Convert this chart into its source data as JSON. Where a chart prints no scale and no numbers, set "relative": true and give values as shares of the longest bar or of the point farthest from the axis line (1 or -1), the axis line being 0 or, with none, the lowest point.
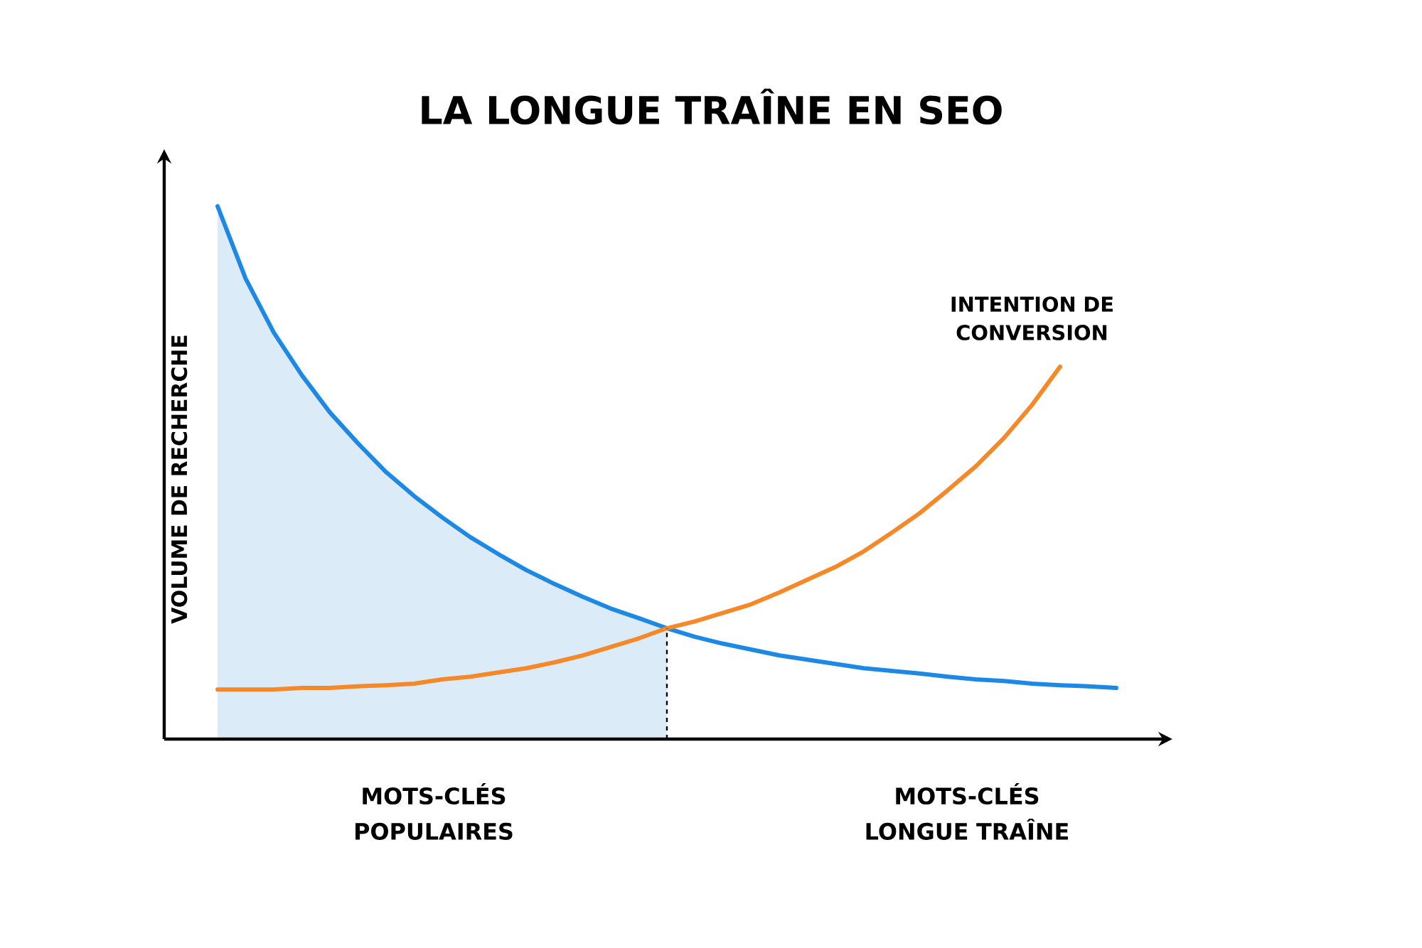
{
  "chart_data": {
    "type": "line",
    "title": "LA LONGUE TRAÎNE EN SEO",
    "ylabel": "VOLUME DE RECHERCHE",
    "relative": true,
    "categories": [
      null,
      null,
      null,
      null,
      null,
      null,
      null,
      null,
      null,
      null,
      null,
      null,
      null,
      null,
      null,
      null,
      null,
      null,
      null,
      null,
      null,
      null,
      null,
      null,
      null,
      null,
      null,
      null,
      null,
      null,
      null,
      null,
      null
    ],
    "series": [
      {
        "type": "area",
        "color": "#dcebf8",
        "values": [
          1,
          0.864,
          0.763,
          0.683,
          0.613,
          0.555,
          0.501,
          0.456,
          0.416,
          0.379,
          0.347,
          0.317,
          0.291,
          0.267,
          0.245,
          0.227,
          0.208,
          null,
          null,
          null,
          null,
          null,
          null,
          null,
          null,
          null,
          null,
          null,
          null,
          null,
          null,
          null,
          null
        ]
      },
      {
        "color": "#1e88e5",
        "values": [
          1,
          0.864,
          0.763,
          0.683,
          0.613,
          0.555,
          0.501,
          0.456,
          0.416,
          0.379,
          0.347,
          0.317,
          0.291,
          0.267,
          0.245,
          0.227,
          0.208,
          0.192,
          0.179,
          0.168,
          0.157,
          0.149,
          0.141,
          0.133,
          0.128,
          0.123,
          0.117,
          0.112,
          0.109,
          0.104,
          0.101,
          0.099,
          0.096
        ]
      },
      {
        "name": "INTENTION DE CONVERSION",
        "color": "#f5892a",
        "values": [
          0.093,
          0.093,
          0.093,
          0.096,
          0.096,
          0.099,
          0.101,
          0.104,
          0.112,
          0.117,
          0.125,
          0.133,
          0.144,
          0.157,
          0.173,
          0.189,
          0.208,
          0.221,
          0.237,
          0.253,
          0.275,
          0.299,
          0.323,
          0.352,
          0.387,
          0.424,
          0.467,
          0.512,
          0.565,
          0.627,
          0.699,
          null,
          null
        ]
      }
    ],
    "annotations": [
      "MOTS-CLÉS POPULAIRES",
      "MOTS-CLÉS LONGUE TRAÎNE"
    ]
  }
}
